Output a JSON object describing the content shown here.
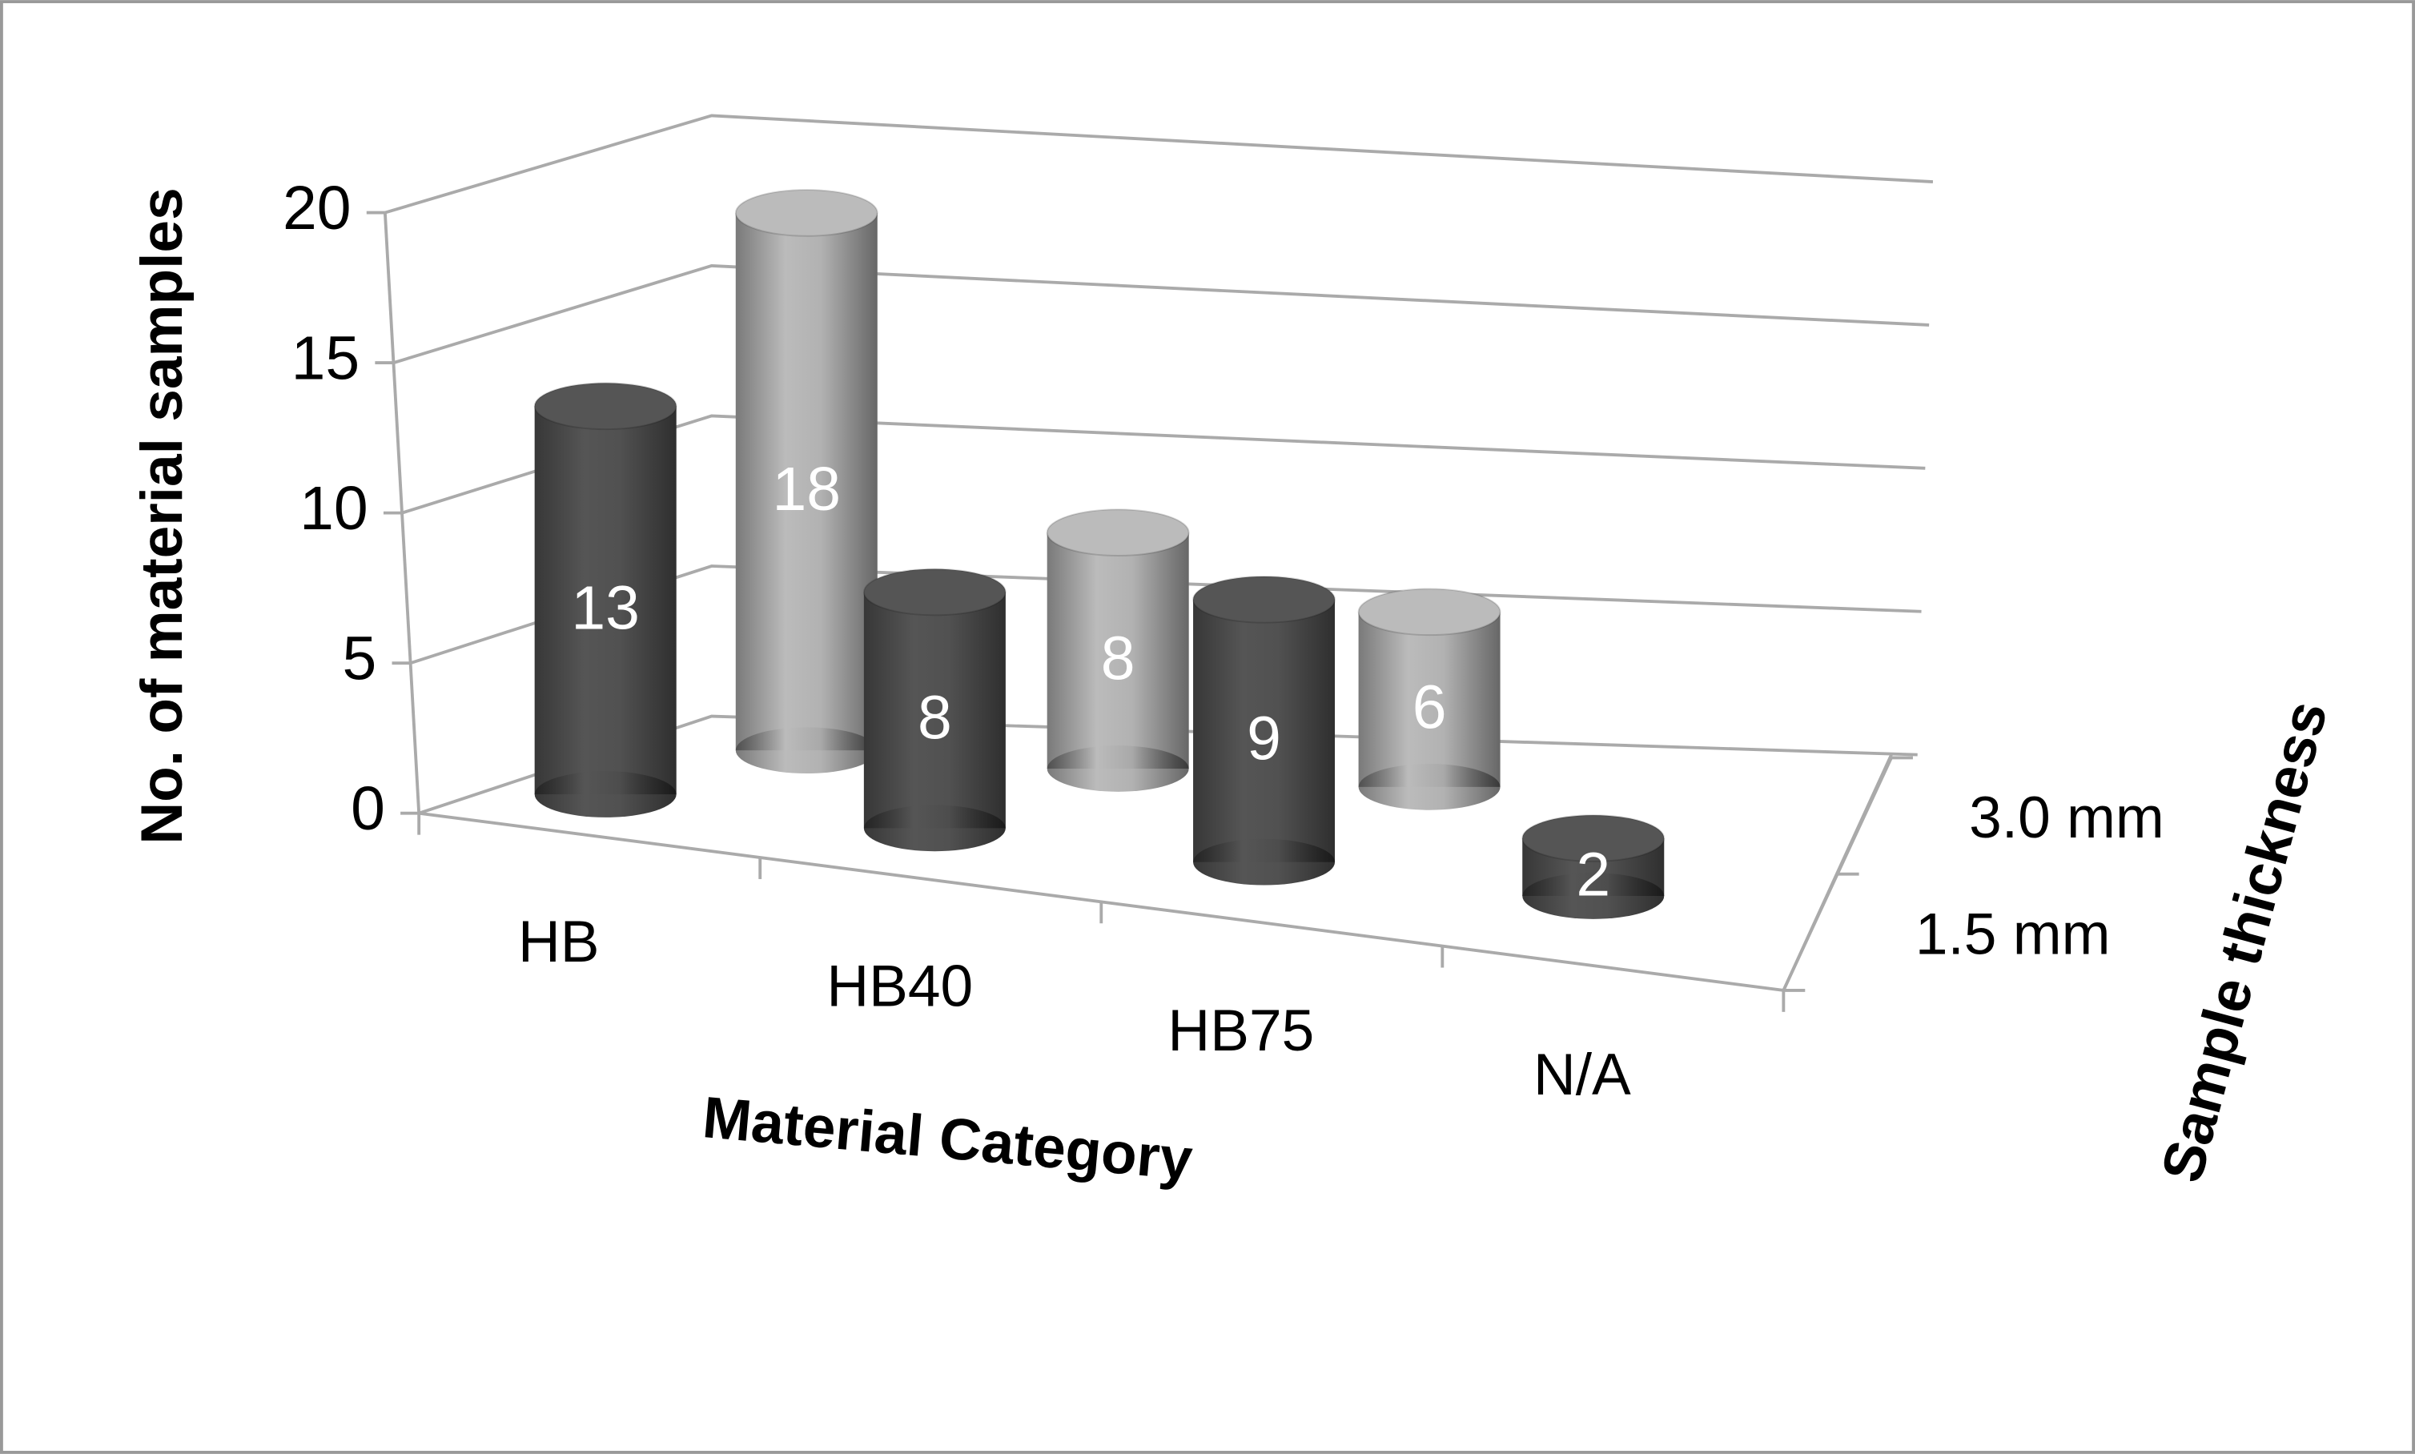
{
  "chart_data": {
    "type": "bar3d",
    "y_axis_title": "No. of material samples",
    "x_axis_title": "Material Category",
    "z_axis_title": "Sample thickness",
    "categories": [
      "HB",
      "HB40",
      "HB75",
      "N/A"
    ],
    "series": [
      {
        "name": "1.5 mm",
        "color": "#555555",
        "values": [
          13,
          8,
          9,
          2
        ]
      },
      {
        "name": "3.0 mm",
        "color": "#bbbbbb",
        "values": [
          18,
          8,
          6,
          null
        ]
      }
    ],
    "ylim": [
      0,
      20
    ],
    "yticks": [
      0,
      5,
      10,
      15,
      20
    ],
    "grid": true
  }
}
